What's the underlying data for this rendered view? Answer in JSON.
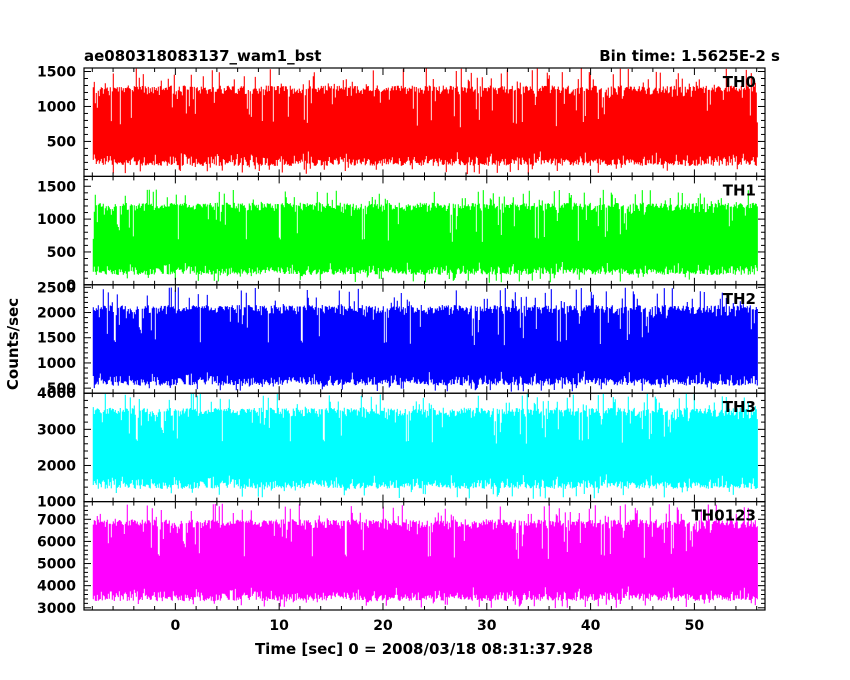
{
  "chart_data": {
    "type": "line",
    "title_left": "ae080318083137_wam1_bst",
    "title_right": "Bin time: 1.5625E-2 s",
    "xlabel": "Time [sec] 0 = 2008/03/18 08:31:37.928",
    "ylabel": "Counts/sec",
    "xlim": [
      -8.8,
      56.8
    ],
    "x_data_range": [
      -7.9,
      56.1
    ],
    "x_ticks": [
      0,
      10,
      20,
      30,
      40,
      50
    ],
    "x_tick_labels": [
      "0",
      "10",
      "20",
      "30",
      "40",
      "50"
    ],
    "grid": false,
    "panels": [
      {
        "name": "TH0",
        "color": "#ff0000",
        "ylim": [
          0,
          1550
        ],
        "y_ticks": [
          500,
          1000,
          1500
        ],
        "y_tick_labels": [
          "500",
          "1000",
          "1500"
        ],
        "mean": 700,
        "typical_min": 150,
        "typical_max": 1300,
        "peak": 1550
      },
      {
        "name": "TH1",
        "color": "#00ff00",
        "ylim": [
          0,
          1650
        ],
        "y_ticks": [
          0,
          500,
          1000,
          1500
        ],
        "y_tick_labels": [
          "0",
          "500",
          "1000",
          "1500"
        ],
        "mean": 650,
        "typical_min": 150,
        "typical_max": 1250,
        "peak": 1450
      },
      {
        "name": "TH2",
        "color": "#0000ff",
        "ylim": [
          400,
          2550
        ],
        "y_ticks": [
          500,
          1000,
          1500,
          2000,
          2500
        ],
        "y_tick_labels": [
          "500",
          "1000",
          "1500",
          "2000",
          "2500"
        ],
        "mean": 1350,
        "typical_min": 550,
        "typical_max": 2150,
        "peak": 2500
      },
      {
        "name": "TH3",
        "color": "#00ffff",
        "ylim": [
          1000,
          4000
        ],
        "y_ticks": [
          1000,
          2000,
          3000,
          4000
        ],
        "y_tick_labels": [
          "1000",
          "2000",
          "3000",
          "4000"
        ],
        "mean": 2600,
        "typical_min": 1350,
        "typical_max": 3600,
        "peak": 4000
      },
      {
        "name": "TH0123",
        "color": "#ff00ff",
        "ylim": [
          2900,
          7800
        ],
        "y_ticks": [
          3000,
          4000,
          5000,
          6000,
          7000
        ],
        "y_tick_labels": [
          "3000",
          "4000",
          "5000",
          "6000",
          "7000"
        ],
        "mean": 5200,
        "typical_min": 3300,
        "typical_max": 7000,
        "peak": 7700
      }
    ]
  }
}
